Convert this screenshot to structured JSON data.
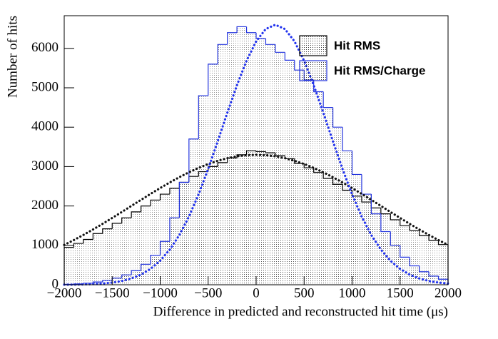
{
  "chart_data": {
    "type": "histogram",
    "x_label": "Difference in predicted and reconstructed hit time (μs)",
    "y_label": "Number of hits",
    "bins": [
      -2000,
      -1900,
      -1800,
      -1700,
      -1600,
      -1500,
      -1400,
      -1300,
      -1200,
      -1100,
      -1000,
      -900,
      -800,
      -700,
      -600,
      -500,
      -400,
      -300,
      -200,
      -100,
      0,
      100,
      200,
      300,
      400,
      500,
      600,
      700,
      800,
      900,
      1000,
      1100,
      1200,
      1300,
      1400,
      1500,
      1600,
      1700,
      1800,
      1900,
      2000
    ],
    "series": [
      {
        "name": "Hit RMS",
        "color": "#000000",
        "values": [
          950,
          1050,
          1150,
          1300,
          1420,
          1560,
          1700,
          1850,
          2000,
          2150,
          2300,
          2450,
          2600,
          2750,
          2870,
          3000,
          3100,
          3220,
          3300,
          3400,
          3380,
          3350,
          3280,
          3200,
          3080,
          2970,
          2850,
          2700,
          2550,
          2400,
          2250,
          2100,
          1950,
          1800,
          1650,
          1500,
          1380,
          1250,
          1130,
          1020
        ]
      },
      {
        "name": "Hit RMS/Charge",
        "color": "#2233dd",
        "values": [
          10,
          20,
          40,
          70,
          110,
          170,
          250,
          360,
          520,
          750,
          1100,
          1700,
          2600,
          3700,
          4800,
          5600,
          6100,
          6400,
          6550,
          6400,
          6250,
          6100,
          5900,
          5700,
          5450,
          5200,
          4900,
          4500,
          4000,
          3400,
          2800,
          2300,
          1800,
          1350,
          1000,
          700,
          480,
          330,
          220,
          140
        ]
      }
    ],
    "fit_x": [
      -2000,
      -1900,
      -1800,
      -1700,
      -1600,
      -1500,
      -1400,
      -1300,
      -1200,
      -1100,
      -1000,
      -900,
      -800,
      -700,
      -600,
      -500,
      -400,
      -300,
      -200,
      -100,
      0,
      100,
      200,
      300,
      400,
      500,
      600,
      700,
      800,
      900,
      1000,
      1100,
      1200,
      1300,
      1400,
      1500,
      1600,
      1700,
      1800,
      1900,
      2000
    ],
    "fits": [
      {
        "color": "#111111",
        "values": [
          1011,
          1134,
          1265,
          1403,
          1547,
          1696,
          1847,
          2002,
          2155,
          2307,
          2455,
          2597,
          2731,
          2855,
          2967,
          3065,
          3147,
          3213,
          3261,
          3290,
          3300,
          3290,
          3261,
          3213,
          3147,
          3065,
          2967,
          2855,
          2731,
          2597,
          2455,
          2307,
          2155,
          2002,
          1847,
          1696,
          1547,
          1403,
          1265,
          1134,
          1011
        ]
      },
      {
        "color": "#2233ee",
        "values": [
          2,
          4,
          9,
          17,
          31,
          55,
          96,
          160,
          258,
          404,
          610,
          893,
          1261,
          1731,
          2294,
          2940,
          3646,
          4368,
          5066,
          5686,
          6178,
          6492,
          6600,
          6492,
          6178,
          5686,
          5066,
          4368,
          3646,
          2940,
          2294,
          1731,
          1261,
          893,
          610,
          404,
          258,
          160,
          96,
          55,
          31
        ]
      }
    ],
    "xlim": [
      -2000,
      2000
    ],
    "ylim": [
      0,
      6830
    ],
    "xticks": [
      {
        "value": -2000,
        "label": "−2000"
      },
      {
        "value": -1500,
        "label": "−1500"
      },
      {
        "value": -1000,
        "label": "−1000"
      },
      {
        "value": -500,
        "label": "−500"
      },
      0,
      500,
      1000,
      1500,
      2000
    ],
    "yticks": [
      0,
      1000,
      2000,
      3000,
      4000,
      5000,
      6000
    ],
    "legend": "top-right",
    "grid": false
  }
}
